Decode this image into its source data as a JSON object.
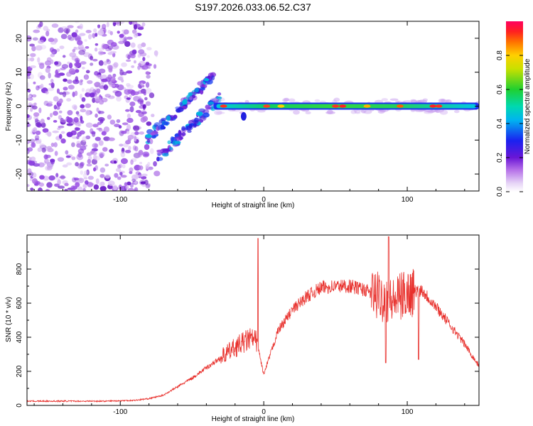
{
  "title": "S197.2026.033.06.52.C37",
  "chart_data": [
    {
      "type": "heatmap",
      "name": "spectrogram",
      "xlabel": "Height of straight line (km)",
      "ylabel": "Frequency (Hz)",
      "xlim": [
        -165,
        150
      ],
      "ylim": [
        -25,
        25
      ],
      "xticks": [
        -100,
        0,
        100
      ],
      "yticks": [
        -20,
        -10,
        0,
        10,
        20
      ],
      "colorbar": {
        "label": "Normalized spectral amplitude",
        "range": [
          0,
          1
        ],
        "ticks": [
          "0.0",
          "0.2",
          "0.4",
          "0.6",
          "0.8"
        ],
        "tick_values": [
          0.0,
          0.2,
          0.4,
          0.6,
          0.8
        ]
      },
      "features": [
        {
          "region": "noise",
          "x": [
            -165,
            -80
          ],
          "freq": [
            -25,
            25
          ],
          "amplitude": 0.1
        },
        {
          "region": "rising-band",
          "x": [
            -82,
            -35
          ],
          "freq": [
            -12,
            7
          ],
          "amplitude": 0.3
        },
        {
          "region": "carrier",
          "x": [
            -35,
            150
          ],
          "freq": [
            0,
            0
          ],
          "amplitude": 0.9
        }
      ]
    },
    {
      "type": "line",
      "name": "snr",
      "xlabel": "Height of straight line (km)",
      "ylabel": "SNR (10 * v/v)",
      "xlim": [
        -165,
        150
      ],
      "ylim": [
        0,
        1000
      ],
      "xticks": [
        -100,
        0,
        100
      ],
      "yticks": [
        0,
        200,
        400,
        600,
        800
      ],
      "series": [
        {
          "name": "SNR",
          "color": "#e8302c",
          "x": [
            -165,
            -140,
            -110,
            -90,
            -80,
            -70,
            -60,
            -50,
            -40,
            -30,
            -20,
            -10,
            -5,
            0,
            10,
            20,
            30,
            40,
            50,
            60,
            70,
            80,
            90,
            100,
            110,
            120,
            130,
            140,
            150
          ],
          "y": [
            25,
            25,
            25,
            30,
            40,
            60,
            110,
            160,
            220,
            280,
            340,
            390,
            380,
            180,
            440,
            560,
            640,
            690,
            700,
            700,
            680,
            640,
            610,
            660,
            680,
            580,
            470,
            360,
            230
          ]
        }
      ]
    }
  ]
}
